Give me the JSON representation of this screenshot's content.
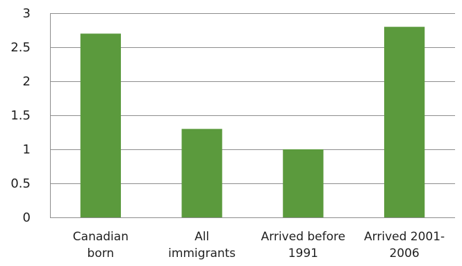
{
  "chart_data": {
    "type": "bar",
    "title": "",
    "xlabel": "",
    "ylabel": "",
    "categories": [
      [
        "Canadian",
        "born"
      ],
      [
        "All",
        "immigrants"
      ],
      [
        "Arrived before",
        "1991"
      ],
      [
        "Arrived 2001-",
        "2006"
      ]
    ],
    "values": [
      2.7,
      1.3,
      1.0,
      2.8
    ],
    "ylim": [
      0,
      3
    ],
    "yticks": [
      0,
      0.5,
      1,
      1.5,
      2,
      2.5,
      3
    ],
    "ytick_labels": [
      "0",
      "0.5",
      "1",
      "1.5",
      "2",
      "2.5",
      "3"
    ],
    "grid": true,
    "legend": "none",
    "colors": {
      "bar": "#5b9a3d",
      "grid": "#8c8c8c",
      "text": "#1f1f1f"
    }
  }
}
